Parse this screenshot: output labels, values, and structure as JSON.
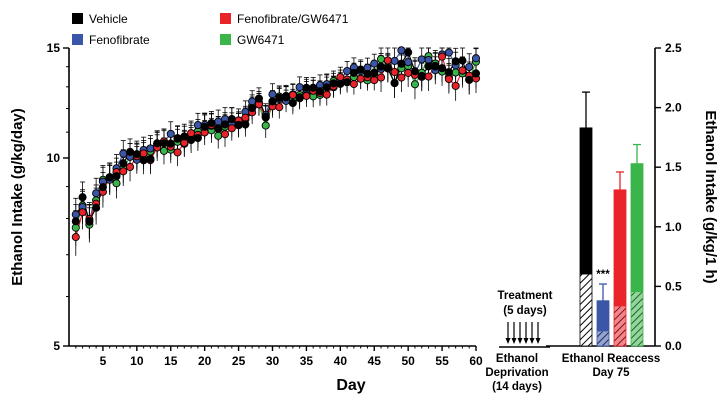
{
  "chart_data": [
    {
      "type": "line",
      "ylabel": "Ethanol Intake (g/kg/day)",
      "xlabel": "Day",
      "xlim": [
        0,
        60
      ],
      "ylim": [
        5,
        15
      ],
      "yscale": "log",
      "xticks": [
        5,
        10,
        15,
        20,
        25,
        30,
        35,
        40,
        45,
        50,
        55,
        60
      ],
      "yticks": [
        5,
        10,
        15
      ],
      "xtick_labels": [
        "5",
        "10",
        "15",
        "20",
        "25",
        "30",
        "35",
        "40",
        "45",
        "50",
        "55",
        "60"
      ],
      "ytick_labels": [
        "5",
        "10",
        "15"
      ],
      "legend_position": "top",
      "series": [
        {
          "name": "Vehicle",
          "color": "#000000",
          "offset": 0.0
        },
        {
          "name": "Fenofibrate",
          "color": "#3b55a8",
          "offset": 0.12
        },
        {
          "name": "Fenofibrate/GW6471",
          "color": "#e8232a",
          "offset": -0.1
        },
        {
          "name": "GW6471",
          "color": "#3ab54a",
          "offset": -0.05
        }
      ],
      "x": [
        1,
        2,
        3,
        4,
        5,
        6,
        7,
        8,
        9,
        10,
        11,
        12,
        13,
        14,
        15,
        16,
        17,
        18,
        19,
        20,
        21,
        22,
        23,
        24,
        25,
        26,
        27,
        28,
        29,
        30,
        31,
        32,
        33,
        34,
        35,
        36,
        37,
        38,
        39,
        40,
        41,
        42,
        43,
        44,
        45,
        46,
        47,
        48,
        49,
        50,
        51,
        52,
        53,
        54,
        55,
        56,
        57,
        58,
        59,
        60
      ],
      "base_values": [
        7.8,
        8.4,
        8.0,
        8.6,
        9.0,
        9.2,
        9.4,
        9.8,
        10.0,
        10.1,
        10.2,
        10.1,
        10.4,
        10.5,
        10.6,
        10.6,
        10.7,
        10.9,
        11.0,
        11.1,
        11.2,
        11.2,
        11.3,
        11.4,
        11.4,
        11.6,
        12.0,
        12.2,
        11.6,
        12.4,
        12.4,
        12.5,
        12.5,
        12.6,
        12.7,
        12.8,
        12.9,
        13.0,
        13.1,
        13.3,
        13.4,
        13.5,
        13.6,
        13.7,
        13.8,
        13.9,
        14.0,
        13.6,
        14.0,
        14.1,
        13.7,
        14.0,
        14.1,
        13.9,
        14.2,
        13.8,
        13.7,
        14.0,
        13.8,
        14.0
      ],
      "error": 0.5
    },
    {
      "type": "bar",
      "ylabel": "Ethanol Intake (g/kg/1 h)",
      "ylim": [
        0,
        2.5
      ],
      "yticks": [
        0.0,
        0.5,
        1.0,
        1.5,
        2.0,
        2.5
      ],
      "ytick_labels": [
        "0.0",
        "0.5",
        "1.0",
        "1.5",
        "2.0",
        "2.5"
      ],
      "categories": [
        "Vehicle",
        "Fenofibrate",
        "Fenofibrate/GW6471",
        "GW6471"
      ],
      "values": [
        1.83,
        0.38,
        1.31,
        1.53
      ],
      "errors": [
        0.3,
        0.14,
        0.15,
        0.16
      ],
      "hatched_portion": [
        0.6,
        0.12,
        0.33,
        0.45
      ],
      "colors": [
        "#000000",
        "#3b55a8",
        "#e8232a",
        "#3ab54a"
      ],
      "significance": {
        "category": "Fenofibrate",
        "label": "***"
      }
    }
  ],
  "timeline": {
    "treatment_label": "Treatment",
    "treatment_days": "(5 days)",
    "deprivation_line1": "Ethanol",
    "deprivation_line2": "Deprivation",
    "deprivation_line3": "(14 days)",
    "reaccess_line1": "Ethanol Reaccess",
    "reaccess_line2": "Day 75"
  }
}
